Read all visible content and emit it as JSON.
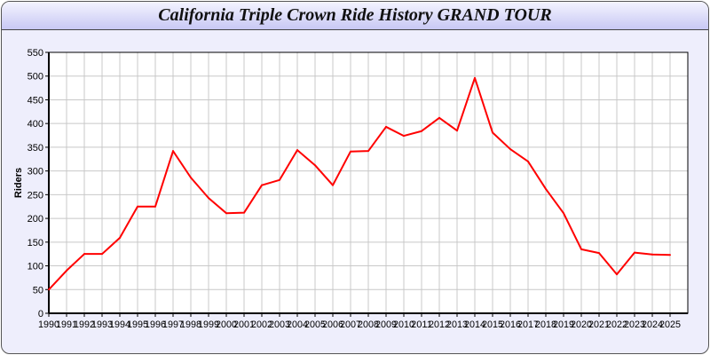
{
  "chart_data": {
    "type": "line",
    "title": "California Triple Crown Ride History GRAND TOUR",
    "xlabel": "",
    "ylabel": "Riders",
    "ylim": [
      0,
      550
    ],
    "xlim": [
      1990,
      2026
    ],
    "yticks": [
      0,
      50,
      100,
      150,
      200,
      250,
      300,
      350,
      400,
      450,
      500,
      550
    ],
    "grid": true,
    "line_color": "#ff0000",
    "x": [
      1990,
      1991,
      1992,
      1993,
      1994,
      1995,
      1996,
      1997,
      1998,
      1999,
      2000,
      2001,
      2002,
      2003,
      2004,
      2005,
      2006,
      2007,
      2008,
      2009,
      2010,
      2011,
      2012,
      2013,
      2014,
      2015,
      2016,
      2017,
      2018,
      2019,
      2020,
      2021,
      2022,
      2023,
      2024,
      2025
    ],
    "values": [
      50,
      90,
      125,
      125,
      159,
      225,
      225,
      342,
      286,
      243,
      211,
      212,
      270,
      281,
      344,
      312,
      270,
      341,
      342,
      393,
      374,
      384,
      412,
      385,
      496,
      381,
      346,
      320,
      262,
      211,
      135,
      127,
      82,
      128,
      124,
      123
    ]
  }
}
